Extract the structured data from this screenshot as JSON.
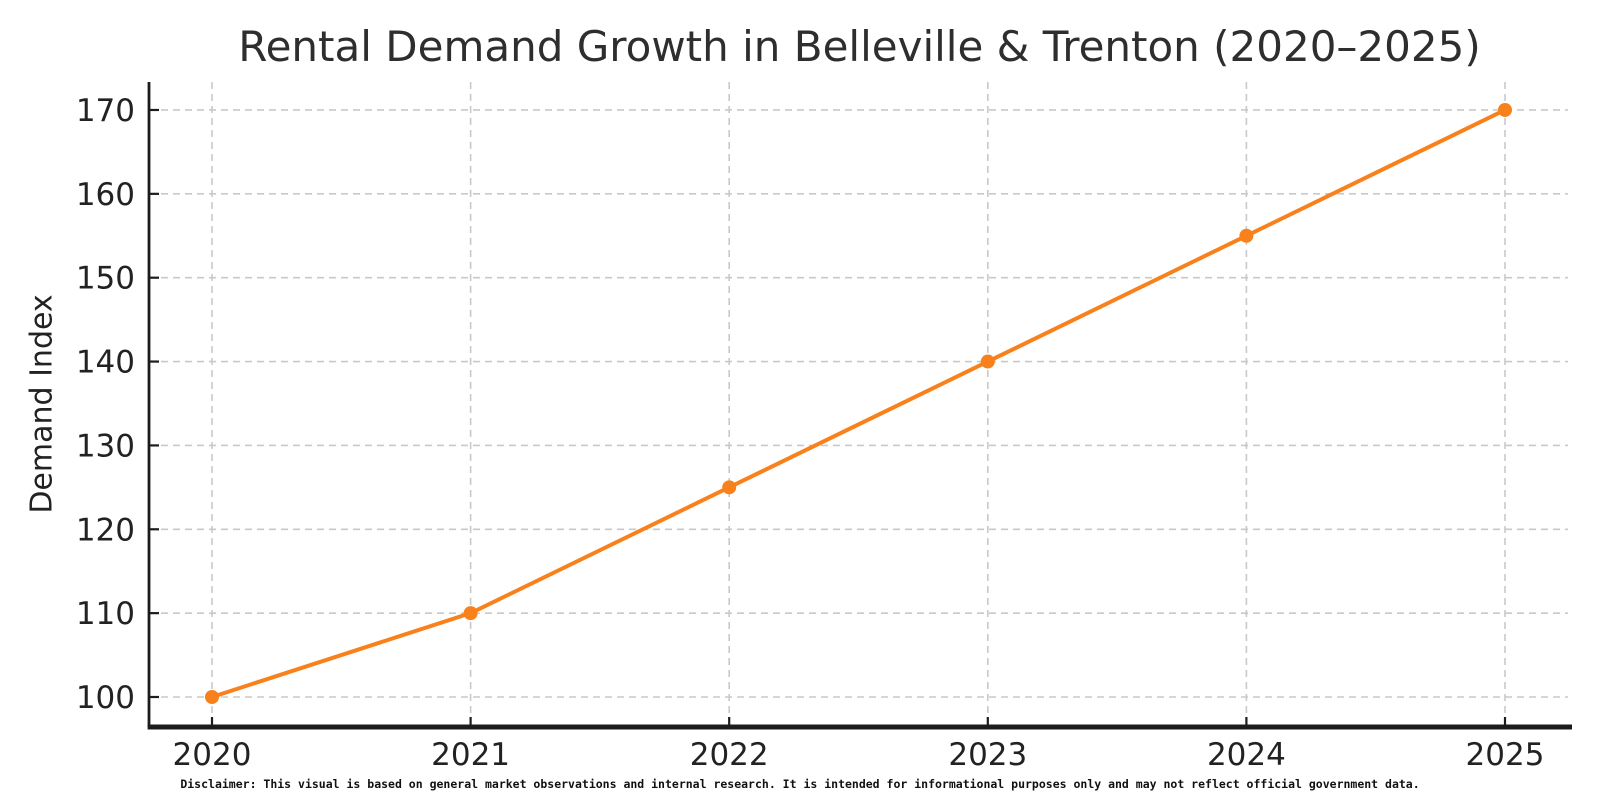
{
  "chart_data": {
    "type": "line",
    "title": "Rental Demand Growth in Belleville & Trenton (2020–2025)",
    "ylabel": "Demand Index",
    "xlabel": "",
    "x": [
      2020,
      2021,
      2022,
      2023,
      2024,
      2025
    ],
    "series": [
      {
        "name": "Demand Index",
        "values": [
          100,
          110,
          125,
          140,
          155,
          170
        ],
        "color": "#f8811c",
        "marker": "circle"
      }
    ],
    "xticks": [
      "2020",
      "2021",
      "2022",
      "2023",
      "2024",
      "2025"
    ],
    "yticks": [
      100,
      110,
      120,
      130,
      140,
      150,
      160,
      170
    ],
    "ylim": [
      95.5,
      173.5
    ],
    "grid": true,
    "grid_style": "dashed",
    "legend_position": "none"
  },
  "colors": {
    "line": "#f8811c",
    "grid": "#c9c9c9",
    "spine": "#1c1c1c",
    "tick": "#1c1c1c",
    "text": "#222222"
  },
  "footer": {
    "disclaimer": "Disclaimer: This visual is based on general market observations and internal research. It is intended for informational purposes only and may not reflect official government data."
  }
}
